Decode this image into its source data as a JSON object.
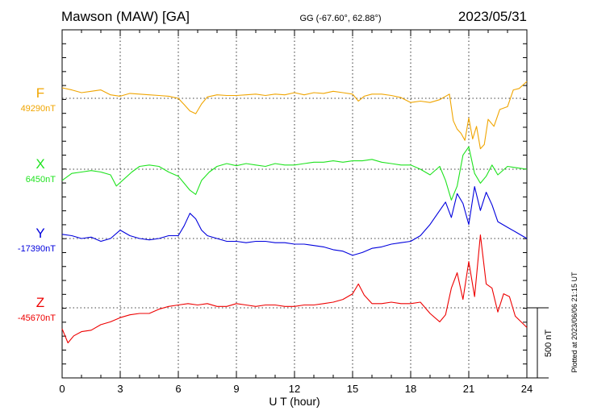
{
  "header": {
    "station": "Mawson (MAW)  [GA]",
    "coords": "GG (-67.60°,  62.88°)",
    "date": "2023/05/31"
  },
  "footer": {
    "plotted": "Plotted at 2023/06/06 21:15 UT"
  },
  "chart_data": {
    "type": "line",
    "xlabel": "U T (hour)",
    "xlim": [
      0,
      24
    ],
    "x_ticks": [
      "0",
      "3",
      "6",
      "9",
      "12",
      "15",
      "18",
      "21",
      "24"
    ],
    "scale_bar": {
      "label": "500 nT",
      "value_nT": 500
    },
    "grid": true,
    "series": [
      {
        "name": "F",
        "baseline_label": "49290nT",
        "baseline_nT": 49290,
        "color": "#f0a500",
        "x": [
          0,
          0.5,
          1,
          1.5,
          2,
          2.5,
          3,
          3.5,
          4,
          4.5,
          5,
          5.5,
          6,
          6.3,
          6.6,
          6.9,
          7.2,
          7.5,
          8,
          8.5,
          9,
          9.5,
          10,
          10.5,
          11,
          11.5,
          12,
          12.5,
          13,
          13.5,
          14,
          14.5,
          15,
          15.3,
          15.6,
          16,
          16.5,
          17,
          17.5,
          18,
          18.5,
          19,
          19.5,
          20,
          20.2,
          20.4,
          20.6,
          20.8,
          21,
          21.2,
          21.4,
          21.6,
          21.8,
          22,
          22.3,
          22.6,
          23,
          23.3,
          23.6,
          24
        ],
        "y": [
          75,
          60,
          40,
          50,
          60,
          25,
          15,
          35,
          30,
          25,
          20,
          15,
          0,
          -45,
          -90,
          -110,
          -40,
          10,
          25,
          20,
          20,
          25,
          30,
          20,
          30,
          25,
          40,
          25,
          40,
          35,
          50,
          40,
          30,
          -20,
          15,
          30,
          30,
          20,
          5,
          -30,
          -20,
          -30,
          -10,
          30,
          -160,
          -220,
          -250,
          -300,
          -140,
          -290,
          -200,
          -360,
          -330,
          -150,
          -200,
          -80,
          -60,
          60,
          70,
          120
        ]
      },
      {
        "name": "X",
        "baseline_label": "6450nT",
        "baseline_nT": 6450,
        "color": "#1ee31e",
        "x": [
          0,
          0.5,
          1,
          1.5,
          2,
          2.5,
          2.8,
          3.2,
          3.6,
          4,
          4.5,
          5,
          5.5,
          6,
          6.3,
          6.6,
          6.9,
          7.2,
          7.6,
          8,
          8.5,
          9,
          9.5,
          10,
          10.5,
          11,
          11.5,
          12,
          12.5,
          13,
          13.5,
          14,
          14.5,
          15,
          15.5,
          16,
          16.5,
          17,
          17.5,
          18,
          18.5,
          19,
          19.5,
          19.8,
          20.1,
          20.4,
          20.7,
          21,
          21.3,
          21.6,
          21.9,
          22.2,
          22.5,
          23,
          23.5,
          24
        ],
        "y": [
          -80,
          -30,
          -20,
          -10,
          -20,
          -40,
          -120,
          -70,
          -20,
          20,
          30,
          20,
          -20,
          -50,
          -100,
          -150,
          -180,
          -80,
          -20,
          20,
          40,
          25,
          40,
          30,
          20,
          40,
          30,
          30,
          40,
          50,
          50,
          60,
          50,
          60,
          60,
          70,
          50,
          40,
          30,
          30,
          0,
          -40,
          20,
          -80,
          -220,
          -120,
          100,
          160,
          -30,
          -100,
          -50,
          30,
          -40,
          20,
          10,
          0
        ]
      },
      {
        "name": "Y",
        "baseline_label": "-17390nT",
        "baseline_nT": -17390,
        "color": "#0000dd",
        "x": [
          0,
          0.5,
          1,
          1.5,
          2,
          2.5,
          3,
          3.5,
          4,
          4.5,
          5,
          5.5,
          6,
          6.3,
          6.6,
          6.9,
          7.2,
          7.5,
          8,
          8.5,
          9,
          9.5,
          10,
          10.5,
          11,
          11.5,
          12,
          12.5,
          13,
          13.5,
          14,
          14.5,
          15,
          15.5,
          16,
          16.5,
          17,
          17.5,
          18,
          18.5,
          19,
          19.5,
          19.8,
          20.1,
          20.4,
          20.7,
          21,
          21.3,
          21.6,
          21.9,
          22.2,
          22.5,
          23,
          23.5,
          24
        ],
        "y": [
          30,
          20,
          0,
          10,
          -20,
          0,
          60,
          20,
          0,
          -10,
          0,
          20,
          20,
          90,
          180,
          140,
          60,
          20,
          0,
          -20,
          -20,
          -30,
          -20,
          -20,
          -30,
          -30,
          -40,
          -40,
          -50,
          -60,
          -80,
          -90,
          -120,
          -100,
          -70,
          -60,
          -40,
          -30,
          -20,
          20,
          100,
          200,
          260,
          150,
          320,
          250,
          100,
          370,
          200,
          330,
          240,
          120,
          80,
          40,
          0
        ]
      },
      {
        "name": "Z",
        "baseline_label": "-45670nT",
        "baseline_nT": -45670,
        "color": "#ee0000",
        "x": [
          0,
          0.3,
          0.6,
          1,
          1.5,
          2,
          2.5,
          3,
          3.5,
          4,
          4.5,
          5,
          5.5,
          6,
          6.5,
          7,
          7.5,
          8,
          8.5,
          9,
          9.5,
          10,
          10.5,
          11,
          11.5,
          12,
          12.5,
          13,
          13.5,
          14,
          14.5,
          15,
          15.3,
          15.6,
          16,
          16.5,
          17,
          17.5,
          18,
          18.5,
          19,
          19.5,
          19.8,
          20.1,
          20.4,
          20.7,
          21,
          21.3,
          21.6,
          21.9,
          22.2,
          22.5,
          22.8,
          23.1,
          23.4,
          23.7,
          24
        ],
        "y": [
          -150,
          -250,
          -200,
          -170,
          -160,
          -120,
          -100,
          -70,
          -50,
          -40,
          -40,
          -10,
          10,
          20,
          30,
          20,
          30,
          10,
          10,
          30,
          20,
          10,
          20,
          20,
          10,
          10,
          20,
          20,
          30,
          40,
          60,
          100,
          170,
          90,
          30,
          30,
          40,
          30,
          30,
          40,
          -40,
          -100,
          -50,
          140,
          250,
          60,
          330,
          80,
          520,
          170,
          140,
          -30,
          100,
          80,
          -60,
          -100,
          -140
        ]
      }
    ]
  }
}
